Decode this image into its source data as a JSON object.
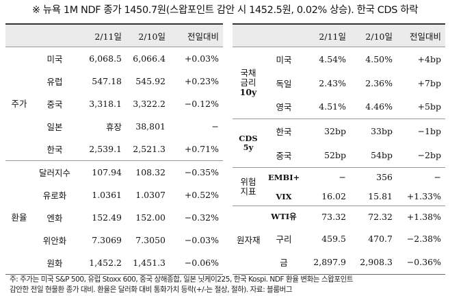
{
  "headline": "※ 뉴욕 1M NDF 종가 1450.7원(스왑포인트 감안 시 1452.5원, 0.02% 상승). 한국 CDS 하락",
  "left": {
    "headers": [
      "2/11일",
      "2/10일",
      "전일대비"
    ],
    "groups": {
      "stocks": "주가",
      "fx": "환율"
    },
    "rows": [
      {
        "item": "미국",
        "d1": "6,068.5",
        "d0": "6,066.4",
        "chg": "+0.03%"
      },
      {
        "item": "유럽",
        "d1": "547.18",
        "d0": "545.92",
        "chg": "+0.23%"
      },
      {
        "item": "중국",
        "d1": "3,318.1",
        "d0": "3,322.2",
        "chg": "−0.12%"
      },
      {
        "item": "일본",
        "d1": "휴장",
        "d0": "38,801",
        "chg": "−"
      },
      {
        "item": "한국",
        "d1": "2,539.1",
        "d0": "2,521.3",
        "chg": "+0.71%"
      },
      {
        "item": "달러지수",
        "d1": "107.94",
        "d0": "108.32",
        "chg": "−0.35%"
      },
      {
        "item": "유로화",
        "d1": "1.0361",
        "d0": "1.0307",
        "chg": "+0.52%"
      },
      {
        "item": "엔화",
        "d1": "152.49",
        "d0": "152.00",
        "chg": "−0.32%"
      },
      {
        "item": "위안화",
        "d1": "7.3069",
        "d0": "7.3050",
        "chg": "−0.03%"
      },
      {
        "item": "원화",
        "d1": "1,452.2",
        "d0": "1,451.3",
        "chg": "−0.06%"
      }
    ]
  },
  "right": {
    "headers": [
      "2/11일",
      "2/10일",
      "전일대비"
    ],
    "groups": {
      "bond_1": "국채",
      "bond_2": "금리",
      "bond_3": "10y",
      "cds_1": "CDS",
      "cds_2": "5y",
      "risk_1": "위험",
      "risk_2": "지표",
      "commodity": "원자재"
    },
    "rows": [
      {
        "item": "미국",
        "d1": "4.54%",
        "d0": "4.50%",
        "chg": "+4bp"
      },
      {
        "item": "독일",
        "d1": "2.43%",
        "d0": "2.36%",
        "chg": "+7bp"
      },
      {
        "item": "영국",
        "d1": "4.51%",
        "d0": "4.46%",
        "chg": "+5bp"
      },
      {
        "item": "한국",
        "d1": "32bp",
        "d0": "33bp",
        "chg": "−1bp"
      },
      {
        "item": "중국",
        "d1": "52bp",
        "d0": "54bp",
        "chg": "−2bp"
      },
      {
        "item": "EMBI+",
        "d1": "−",
        "d0": "356",
        "chg": "−"
      },
      {
        "item": "VIX",
        "d1": "16.02",
        "d0": "15.81",
        "chg": "+1.33%"
      },
      {
        "item": "WTI유",
        "d1": "73.32",
        "d0": "72.32",
        "chg": "+1.38%"
      },
      {
        "item": "구리",
        "d1": "459.5",
        "d0": "470.7",
        "chg": "−2.38%"
      },
      {
        "item": "금",
        "d1": "2,897.9",
        "d0": "2,908.3",
        "chg": "−0.36%"
      }
    ]
  },
  "note": {
    "line1": "주: 주가는 미국 S&P 500, 유럽 Stoxx 600, 중국 상해종합, 일본 닛케이225, 한국 Kospi. NDF 환율 변화는 스왑포인트",
    "line2": "감안한 전일 현물환 종가 대비. 환율은 달러화 대비 통화가치 등락(+/-는 절상, 절하). 자료: 블룸버그"
  }
}
